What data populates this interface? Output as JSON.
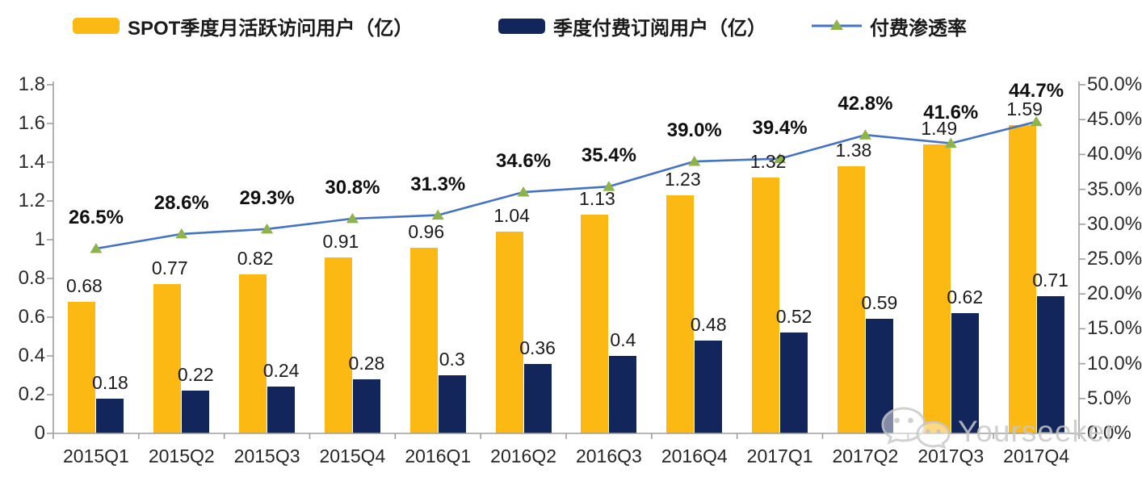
{
  "legend": [
    {
      "label": "SPOT季度月活跃访问用户（亿）",
      "color": "#FCB813",
      "type": "bar"
    },
    {
      "label": "季度付费订阅用户（亿）",
      "color": "#13265C",
      "type": "bar"
    },
    {
      "label": "付费渗透率",
      "color": "#4472C4",
      "marker_color": "#8DB34A",
      "type": "line"
    }
  ],
  "chart_data": {
    "type": "bar+line combo",
    "categories": [
      "2015Q1",
      "2015Q2",
      "2015Q3",
      "2015Q4",
      "2016Q1",
      "2016Q2",
      "2016Q3",
      "2016Q4",
      "2017Q1",
      "2017Q2",
      "2017Q3",
      "2017Q4"
    ],
    "series": [
      {
        "name": "SPOT季度月活跃访问用户（亿）",
        "type": "bar",
        "color": "#FCB813",
        "values": [
          0.68,
          0.77,
          0.82,
          0.91,
          0.96,
          1.04,
          1.13,
          1.23,
          1.32,
          1.38,
          1.49,
          1.59
        ],
        "labels": [
          "0.68",
          "0.77",
          "0.82",
          "0.91",
          "0.96",
          "1.04",
          "1.13",
          "1.23",
          "1.32",
          "1.38",
          "1.49",
          "1.59"
        ]
      },
      {
        "name": "季度付费订阅用户（亿）",
        "type": "bar",
        "color": "#13265C",
        "values": [
          0.18,
          0.22,
          0.24,
          0.28,
          0.3,
          0.36,
          0.4,
          0.48,
          0.52,
          0.59,
          0.62,
          0.71
        ],
        "labels": [
          "0.18",
          "0.22",
          "0.24",
          "0.28",
          "0.3",
          "0.36",
          "0.4",
          "0.48",
          "0.52",
          "0.59",
          "0.62",
          "0.71"
        ]
      },
      {
        "name": "付费渗透率",
        "type": "line",
        "color": "#4472C4",
        "marker": "triangle",
        "marker_color": "#8DB34A",
        "values": [
          26.5,
          28.6,
          29.3,
          30.8,
          31.3,
          34.6,
          35.4,
          39.0,
          39.4,
          42.8,
          41.6,
          44.7
        ],
        "labels": [
          "26.5%",
          "28.6%",
          "29.3%",
          "30.8%",
          "31.3%",
          "34.6%",
          "35.4%",
          "39.0%",
          "39.4%",
          "42.8%",
          "41.6%",
          "44.7%"
        ]
      }
    ],
    "left_axis": {
      "min": 0,
      "max": 1.8,
      "ticks": [
        "0",
        "0.2",
        "0.4",
        "0.6",
        "0.8",
        "1",
        "1.2",
        "1.4",
        "1.6",
        "1.8"
      ]
    },
    "right_axis": {
      "min": 0,
      "max": 50,
      "ticks": [
        "0.0%",
        "5.0%",
        "10.0%",
        "15.0%",
        "20.0%",
        "25.0%",
        "30.0%",
        "35.0%",
        "40.0%",
        "45.0%",
        "50.0%"
      ]
    },
    "grid": false,
    "legend_position": "top"
  },
  "watermark": {
    "text": "Yourseeker",
    "icon": "wechat-icon"
  }
}
